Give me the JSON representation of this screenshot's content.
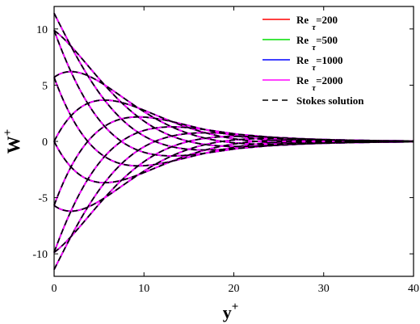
{
  "chart_data": {
    "type": "line",
    "xlabel": "y",
    "xlabel_sup": "+",
    "ylabel": "W",
    "ylabel_sup": "+",
    "xlim": [
      0,
      40
    ],
    "ylim": [
      -12,
      12
    ],
    "xticks": [
      0,
      10,
      20,
      30,
      40
    ],
    "yticks": [
      -10,
      -5,
      0,
      5,
      10
    ],
    "grid": false,
    "legend_position": "top-right",
    "stokes_amplitude": 11.4,
    "stokes_decay_length": 7.15,
    "phases_deg": [
      0,
      30,
      60,
      90,
      120,
      150,
      180,
      210,
      240,
      270,
      300,
      330
    ],
    "series": [
      {
        "name": "Re",
        "sub": "τ",
        "suffix": "=200",
        "color": "#ff0000",
        "style": "solid"
      },
      {
        "name": "Re",
        "sub": "τ",
        "suffix": "=500",
        "color": "#00dd00",
        "style": "solid"
      },
      {
        "name": "Re",
        "sub": "τ",
        "suffix": "=1000",
        "color": "#0000ff",
        "style": "solid"
      },
      {
        "name": "Re",
        "sub": "τ",
        "suffix": "=2000",
        "color": "#ff00ff",
        "style": "solid"
      },
      {
        "name": "Stokes solution",
        "sub": "",
        "suffix": "",
        "color": "#000000",
        "style": "dashed"
      }
    ]
  }
}
